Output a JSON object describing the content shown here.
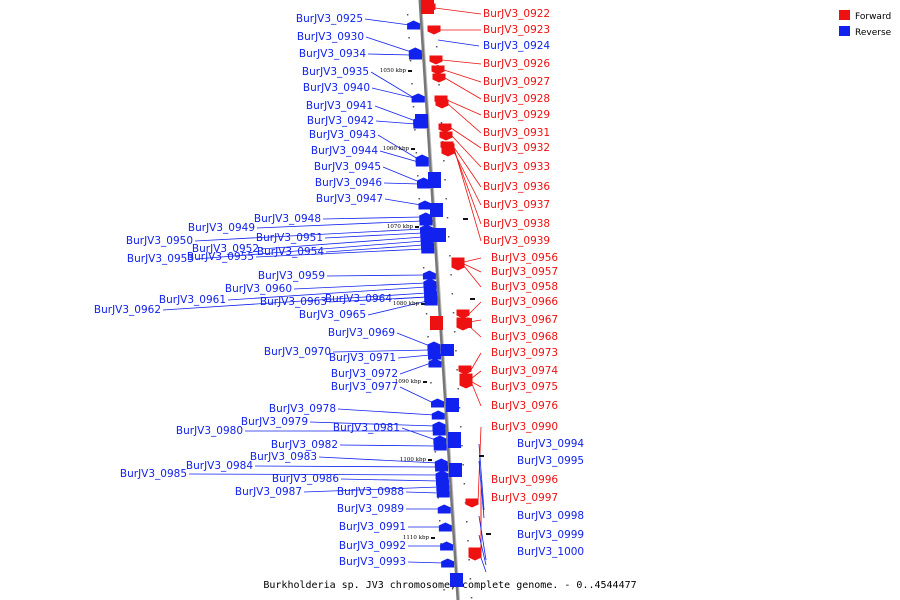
{
  "colors": {
    "forward": "#ee1111",
    "reverse": "#1122ee",
    "axis": "#777777"
  },
  "legend": [
    {
      "name": "Forward",
      "color": "#ee1111"
    },
    {
      "name": "Reverse",
      "color": "#1122ee"
    }
  ],
  "caption": "Burkholderia sp. JV3 chromosome, complete genome. - 0..4544477",
  "ticks": [
    "1050 kbp",
    "1060 kbp",
    "1070 kbp",
    "1080 kbp",
    "1090 kbp",
    "1100 kbp",
    "1110 kbp"
  ],
  "forward_labels": [
    "BurJV3_0922",
    "BurJV3_0923",
    "BurJV3_0926",
    "BurJV3_0927",
    "BurJV3_0928",
    "BurJV3_0929",
    "BurJV3_0931",
    "BurJV3_0932",
    "BurJV3_0933",
    "BurJV3_0936",
    "BurJV3_0937",
    "BurJV3_0938",
    "BurJV3_0939",
    "BurJV3_0956",
    "BurJV3_0957",
    "BurJV3_0958",
    "BurJV3_0966",
    "BurJV3_0967",
    "BurJV3_0968",
    "BurJV3_0973",
    "BurJV3_0974",
    "BurJV3_0975",
    "BurJV3_0976",
    "BurJV3_0990",
    "BurJV3_0996",
    "BurJV3_0997"
  ],
  "reverse_labels_right": [
    "BurJV3_0924",
    "BurJV3_0994",
    "BurJV3_0995",
    "BurJV3_0998",
    "BurJV3_0999",
    "BurJV3_1000"
  ],
  "reverse_labels_left": [
    "BurJV3_0925",
    "BurJV3_0930",
    "BurJV3_0934",
    "BurJV3_0935",
    "BurJV3_0940",
    "BurJV3_0941",
    "BurJV3_0942",
    "BurJV3_0943",
    "BurJV3_0944",
    "BurJV3_0945",
    "BurJV3_0946",
    "BurJV3_0947",
    "BurJV3_0948",
    "BurJV3_0949",
    "BurJV3_0950",
    "BurJV3_0951",
    "BurJV3_0952",
    "BurJV3_0953",
    "BurJV3_0954",
    "BurJV3_0955",
    "BurJV3_0959",
    "BurJV3_0960",
    "BurJV3_0961",
    "BurJV3_0962",
    "BurJV3_0963",
    "BurJV3_0964",
    "BurJV3_0965",
    "BurJV3_0969",
    "BurJV3_0970",
    "BurJV3_0971",
    "BurJV3_0972",
    "BurJV3_0977",
    "BurJV3_0978",
    "BurJV3_0979",
    "BurJV3_0980",
    "BurJV3_0981",
    "BurJV3_0982",
    "BurJV3_0983",
    "BurJV3_0984",
    "BurJV3_0985",
    "BurJV3_0986",
    "BurJV3_0987",
    "BurJV3_0988",
    "BurJV3_0989",
    "BurJV3_0991",
    "BurJV3_0992",
    "BurJV3_0993"
  ]
}
